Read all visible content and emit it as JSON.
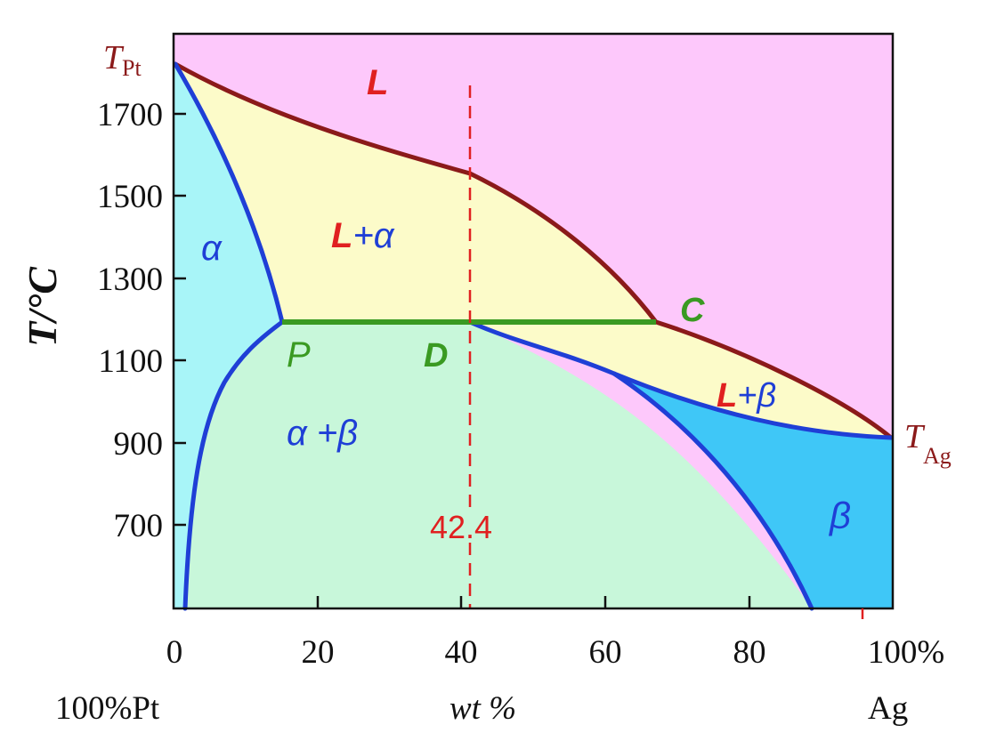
{
  "diagram": {
    "x_axis": {
      "ticks": [
        "0",
        "20",
        "40",
        "60",
        "80",
        "100%"
      ],
      "left_end_label": "100%Pt",
      "title": "wt %",
      "right_end_label": "Ag"
    },
    "y_axis": {
      "title": "T/°C",
      "ticks": [
        "1700",
        "1500",
        "1300",
        "1100",
        "900",
        "700"
      ]
    },
    "endpoints": {
      "pt_melting_T": "T",
      "pt_melting_sub": "Pt",
      "ag_melting_T": "T",
      "ag_melting_sub": "Ag"
    },
    "composition_line": {
      "label": "42.4",
      "value_wt_percent": 42.4
    },
    "points": {
      "P": "P",
      "D": "D",
      "C": "C"
    },
    "regions": {
      "liquid": "L",
      "liquid_alpha_L": "L",
      "liquid_alpha_rest": "+α",
      "alpha": "α",
      "alpha_beta": "α +β",
      "liquid_beta_L": "L",
      "liquid_beta_rest": "+β",
      "beta": "β"
    },
    "colors": {
      "liquid_region": "#FDC8FB",
      "two_phase_liquid": "#FCFBC9",
      "alpha_region": "#A8F5F8",
      "alpha_beta_region": "#C8F7DA",
      "beta_region": "#3FC7F7",
      "liquidus": "#8B1A1A",
      "solidus": "#1F3FD6",
      "peritectic_line": "#3A9A22",
      "composition_line": "#E02020",
      "label_red": "#E02020",
      "label_blue": "#1F3FD6",
      "label_green": "#3A9A22",
      "label_darkred": "#8B1A1A"
    }
  }
}
